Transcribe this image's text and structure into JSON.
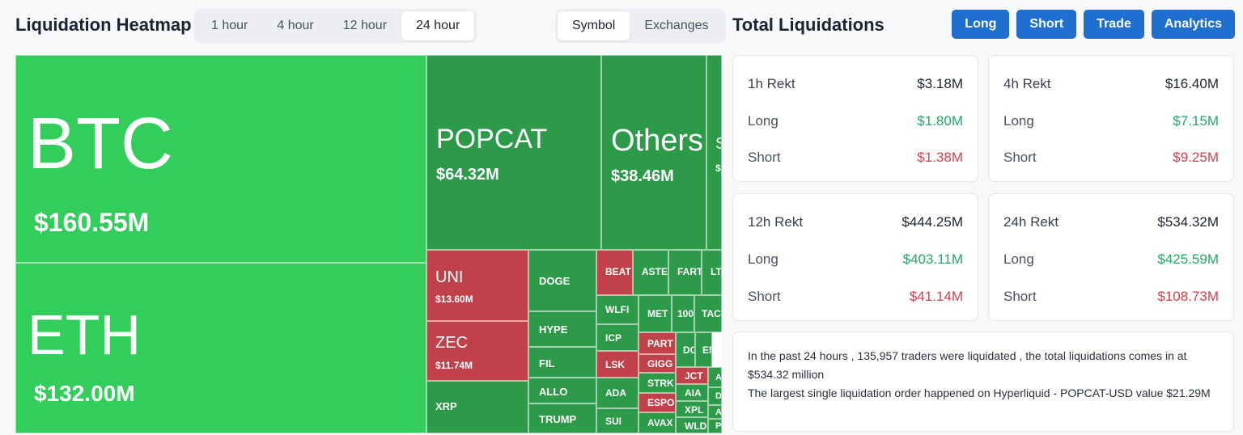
{
  "header": {
    "heatmap_title": "Liquidation Heatmap",
    "time_tabs": [
      {
        "label": "1 hour",
        "active": false
      },
      {
        "label": "4 hour",
        "active": false
      },
      {
        "label": "12 hour",
        "active": false
      },
      {
        "label": "24 hour",
        "active": true
      }
    ],
    "view_tabs": [
      {
        "label": "Symbol",
        "active": true
      },
      {
        "label": "Exchanges",
        "active": false
      }
    ],
    "total_title": "Total Liquidations",
    "buttons": [
      "Long",
      "Short",
      "Trade",
      "Analytics"
    ]
  },
  "colors": {
    "bright_green": "#32cd5b",
    "green": "#2d9a4a",
    "red": "#c1414a",
    "accent_blue": "#1e6fd0",
    "long_text": "#24a865",
    "short_text": "#d8404a"
  },
  "chart_data": {
    "type": "treemap",
    "items": [
      {
        "symbol": "BTC",
        "value": "$160.55M",
        "color": "bright_green"
      },
      {
        "symbol": "ETH",
        "value": "$132.00M",
        "color": "bright_green"
      },
      {
        "symbol": "POPCAT",
        "value": "$64.32M",
        "color": "green"
      },
      {
        "symbol": "Others",
        "value": "$38.46M",
        "color": "green"
      },
      {
        "symbol": "S",
        "value": "$",
        "color": "green"
      },
      {
        "symbol": "UNI",
        "value": "$13.60M",
        "color": "red"
      },
      {
        "symbol": "ZEC",
        "value": "$11.74M",
        "color": "red"
      },
      {
        "symbol": "XRP",
        "value": "",
        "color": "green"
      },
      {
        "symbol": "DOGE",
        "value": "",
        "color": "green"
      },
      {
        "symbol": "HYPE",
        "value": "",
        "color": "green"
      },
      {
        "symbol": "FIL",
        "value": "",
        "color": "green"
      },
      {
        "symbol": "ALLO",
        "value": "",
        "color": "green"
      },
      {
        "symbol": "TRUMP",
        "value": "",
        "color": "green"
      },
      {
        "symbol": "BEAT",
        "value": "",
        "color": "red"
      },
      {
        "symbol": "ASTE",
        "value": "",
        "color": "green"
      },
      {
        "symbol": "FART",
        "value": "",
        "color": "green"
      },
      {
        "symbol": "LT",
        "value": "",
        "color": "green"
      },
      {
        "symbol": "WLFI",
        "value": "",
        "color": "green"
      },
      {
        "symbol": "ICP",
        "value": "",
        "color": "green"
      },
      {
        "symbol": "LSK",
        "value": "",
        "color": "red"
      },
      {
        "symbol": "ADA",
        "value": "",
        "color": "green"
      },
      {
        "symbol": "SUI",
        "value": "",
        "color": "green"
      },
      {
        "symbol": "MET",
        "value": "",
        "color": "green"
      },
      {
        "symbol": "100",
        "value": "",
        "color": "green"
      },
      {
        "symbol": "TAC",
        "value": "",
        "color": "green"
      },
      {
        "symbol": "PART",
        "value": "",
        "color": "red"
      },
      {
        "symbol": "GIGG",
        "value": "",
        "color": "red"
      },
      {
        "symbol": "STRK",
        "value": "",
        "color": "green"
      },
      {
        "symbol": "ESPO",
        "value": "",
        "color": "red"
      },
      {
        "symbol": "AVAX",
        "value": "",
        "color": "green"
      },
      {
        "symbol": "DC",
        "value": "",
        "color": "green"
      },
      {
        "symbol": "EN",
        "value": "",
        "color": "green"
      },
      {
        "symbol": "JCT",
        "value": "",
        "color": "red"
      },
      {
        "symbol": "AIA",
        "value": "",
        "color": "green"
      },
      {
        "symbol": "XPL",
        "value": "",
        "color": "green"
      },
      {
        "symbol": "WLD",
        "value": "",
        "color": "green"
      },
      {
        "symbol": "A",
        "value": "",
        "color": "green"
      },
      {
        "symbol": "D",
        "value": "",
        "color": "green"
      },
      {
        "symbol": "A",
        "value": "",
        "color": "green"
      },
      {
        "symbol": "P",
        "value": "",
        "color": "green"
      }
    ]
  },
  "stats": [
    {
      "title": "1h Rekt",
      "total": "$3.18M",
      "long_label": "Long",
      "long": "$1.80M",
      "short_label": "Short",
      "short": "$1.38M"
    },
    {
      "title": "4h Rekt",
      "total": "$16.40M",
      "long_label": "Long",
      "long": "$7.15M",
      "short_label": "Short",
      "short": "$9.25M"
    },
    {
      "title": "12h Rekt",
      "total": "$444.25M",
      "long_label": "Long",
      "long": "$403.11M",
      "short_label": "Short",
      "short": "$41.14M"
    },
    {
      "title": "24h Rekt",
      "total": "$534.32M",
      "long_label": "Long",
      "long": "$425.59M",
      "short_label": "Short",
      "short": "$108.73M"
    }
  ],
  "summary": {
    "line1": "In the past 24 hours , 135,957 traders were liquidated , the total liquidations comes in at $534.32 million",
    "line2": "The largest single liquidation order happened on Hyperliquid - POPCAT-USD value $21.29M"
  }
}
